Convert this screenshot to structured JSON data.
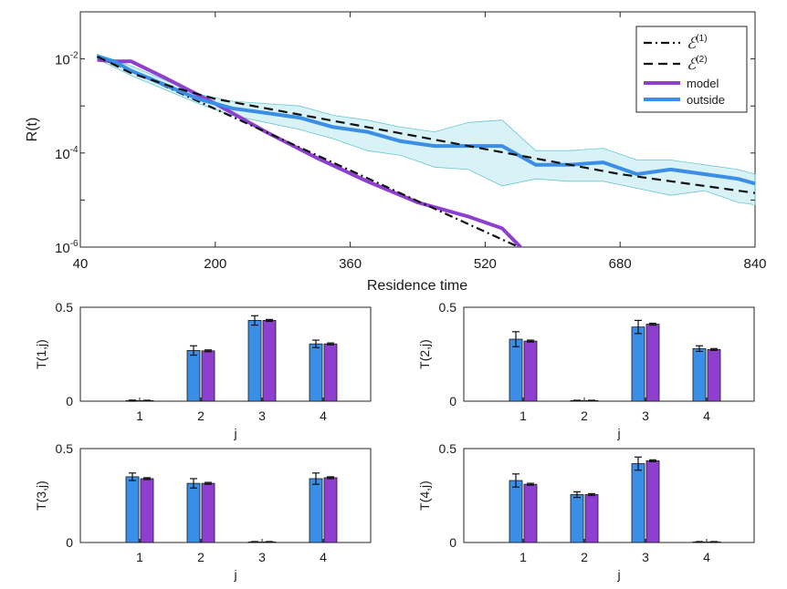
{
  "colors": {
    "model": "#8e3fd0",
    "outside": "#3a8ee6",
    "band": "#a9e3ea",
    "bar_blue": "#3a8ee6",
    "bar_purple": "#8e3fd0"
  },
  "chart_data": [
    {
      "type": "line",
      "xlabel": "Residence time",
      "ylabel": "R(t)",
      "xlim": [
        40,
        840
      ],
      "ylim_log10": [
        -6,
        -1
      ],
      "y_scale": "log",
      "xticks": [
        40,
        200,
        360,
        520,
        680,
        840
      ],
      "yticks": [
        {
          "value": -2,
          "label": "10",
          "exp": "-2"
        },
        {
          "value": -4,
          "label": "10",
          "exp": "-4"
        },
        {
          "value": -6,
          "label": "10",
          "exp": "-6"
        }
      ],
      "legend": {
        "position": "top-right",
        "entries": [
          {
            "key": "e1",
            "label": "ℰ",
            "sup": "(1)"
          },
          {
            "key": "e2",
            "label": "ℰ",
            "sup": "(2)"
          },
          {
            "key": "model",
            "label": "model"
          },
          {
            "key": "outside",
            "label": "outside"
          }
        ]
      },
      "series": [
        {
          "name": "ℰ(1)",
          "key": "e1",
          "style": "dashdot",
          "x": [
            60,
            100,
            560
          ],
          "log10_y": [
            -1.95,
            -2.25,
            -6.0
          ]
        },
        {
          "name": "ℰ(2)",
          "key": "e2",
          "style": "dashed",
          "x": [
            60,
            100,
            150,
            200,
            260,
            320,
            380,
            440,
            500,
            560,
            620,
            680,
            740,
            800,
            840
          ],
          "log10_y": [
            -1.95,
            -2.3,
            -2.6,
            -2.85,
            -3.05,
            -3.25,
            -3.45,
            -3.65,
            -3.85,
            -4.05,
            -4.25,
            -4.45,
            -4.6,
            -4.75,
            -4.85
          ]
        },
        {
          "name": "model",
          "key": "model",
          "style": "solid",
          "x": [
            60,
            80,
            100,
            140,
            200,
            260,
            320,
            380,
            440,
            500,
            540,
            562
          ],
          "log10_y": [
            -2.02,
            -2.05,
            -2.05,
            -2.4,
            -2.95,
            -3.55,
            -4.1,
            -4.6,
            -5.05,
            -5.35,
            -5.6,
            -6.0
          ]
        },
        {
          "name": "outside",
          "key": "outside",
          "style": "solid",
          "x": [
            60,
            80,
            100,
            140,
            180,
            220,
            260,
            300,
            340,
            380,
            420,
            460,
            500,
            540,
            580,
            620,
            660,
            700,
            740,
            780,
            820,
            840
          ],
          "log10_y": [
            -1.95,
            -2.05,
            -2.25,
            -2.55,
            -2.85,
            -3.05,
            -3.15,
            -3.25,
            -3.45,
            -3.55,
            -3.75,
            -3.85,
            -3.85,
            -3.85,
            -4.25,
            -4.25,
            -4.2,
            -4.45,
            -4.35,
            -4.45,
            -4.55,
            -4.65
          ]
        }
      ],
      "band": {
        "name": "outside range",
        "x": [
          60,
          100,
          140,
          180,
          220,
          260,
          300,
          340,
          380,
          420,
          460,
          500,
          540,
          580,
          620,
          660,
          700,
          740,
          780,
          820,
          840
        ],
        "upper_log10": [
          -1.9,
          -2.15,
          -2.45,
          -2.75,
          -2.9,
          -2.95,
          -3.0,
          -3.2,
          -3.3,
          -3.45,
          -3.55,
          -3.35,
          -3.3,
          -3.95,
          -3.95,
          -3.9,
          -4.15,
          -4.15,
          -4.25,
          -4.35,
          -4.45
        ],
        "lower_log10": [
          -2.0,
          -2.35,
          -2.65,
          -2.95,
          -3.2,
          -3.35,
          -3.5,
          -3.7,
          -3.95,
          -4.05,
          -4.3,
          -4.35,
          -4.7,
          -4.55,
          -4.6,
          -4.6,
          -4.75,
          -4.9,
          -4.8,
          -5.05,
          -5.1
        ]
      }
    },
    {
      "type": "bar",
      "ylabel": "T(1,j)",
      "xlabel": "j",
      "categories": [
        "1",
        "2",
        "3",
        "4"
      ],
      "ylim": [
        0,
        0.5
      ],
      "yticks": [
        "0",
        "0.5"
      ],
      "series": [
        {
          "name": "outside",
          "values": [
            0.003,
            0.27,
            0.43,
            0.305
          ],
          "err": [
            0.003,
            0.025,
            0.025,
            0.02
          ]
        },
        {
          "name": "model",
          "values": [
            0.003,
            0.268,
            0.43,
            0.305
          ],
          "err": [
            0.002,
            0.005,
            0.005,
            0.005
          ]
        }
      ]
    },
    {
      "type": "bar",
      "ylabel": "T(2,j)",
      "xlabel": "j",
      "categories": [
        "1",
        "2",
        "3",
        "4"
      ],
      "ylim": [
        0,
        0.5
      ],
      "yticks": [
        "0",
        "0.5"
      ],
      "series": [
        {
          "name": "outside",
          "values": [
            0.33,
            0.003,
            0.395,
            0.28
          ],
          "err": [
            0.04,
            0.002,
            0.035,
            0.015
          ]
        },
        {
          "name": "model",
          "values": [
            0.32,
            0.003,
            0.41,
            0.275
          ],
          "err": [
            0.005,
            0.002,
            0.005,
            0.005
          ]
        }
      ]
    },
    {
      "type": "bar",
      "ylabel": "T(3,j)",
      "xlabel": "j",
      "categories": [
        "1",
        "2",
        "3",
        "4"
      ],
      "ylim": [
        0,
        0.5
      ],
      "yticks": [
        "0",
        "0.5"
      ],
      "series": [
        {
          "name": "outside",
          "values": [
            0.35,
            0.315,
            0.003,
            0.34
          ],
          "err": [
            0.02,
            0.025,
            0.002,
            0.03
          ]
        },
        {
          "name": "model",
          "values": [
            0.34,
            0.315,
            0.003,
            0.345
          ],
          "err": [
            0.005,
            0.005,
            0.002,
            0.005
          ]
        }
      ]
    },
    {
      "type": "bar",
      "ylabel": "T(4,j)",
      "xlabel": "j",
      "categories": [
        "1",
        "2",
        "3",
        "4"
      ],
      "ylim": [
        0,
        0.5
      ],
      "yticks": [
        "0",
        "0.5"
      ],
      "series": [
        {
          "name": "outside",
          "values": [
            0.33,
            0.255,
            0.42,
            0.003
          ],
          "err": [
            0.035,
            0.015,
            0.035,
            0.002
          ]
        },
        {
          "name": "model",
          "values": [
            0.31,
            0.255,
            0.435,
            0.003
          ],
          "err": [
            0.005,
            0.005,
            0.005,
            0.002
          ]
        }
      ]
    }
  ]
}
